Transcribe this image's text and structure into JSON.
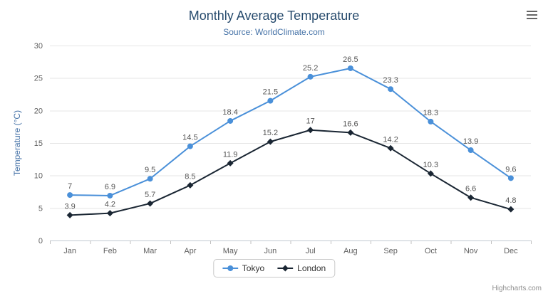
{
  "chart_data": {
    "type": "line",
    "title": "Monthly Average Temperature",
    "subtitle": "Source: WorldClimate.com",
    "xlabel": "",
    "ylabel": "Temperature (°C)",
    "categories": [
      "Jan",
      "Feb",
      "Mar",
      "Apr",
      "May",
      "Jun",
      "Jul",
      "Aug",
      "Sep",
      "Oct",
      "Nov",
      "Dec"
    ],
    "yticks": [
      0,
      5,
      10,
      15,
      20,
      25,
      30
    ],
    "ylim": [
      0,
      30
    ],
    "grid": true,
    "legend_position": "bottom",
    "data_labels": true,
    "series": [
      {
        "name": "Tokyo",
        "marker": "circle",
        "color": "#4a90d9",
        "values": [
          7,
          6.9,
          9.5,
          14.5,
          18.4,
          21.5,
          25.2,
          26.5,
          23.3,
          18.3,
          13.9,
          9.6
        ]
      },
      {
        "name": "London",
        "marker": "diamond",
        "color": "#1a2633",
        "values": [
          3.9,
          4.2,
          5.7,
          8.5,
          11.9,
          15.2,
          17,
          16.6,
          14.2,
          10.3,
          6.6,
          4.8
        ]
      }
    ]
  },
  "credits": "Highcharts.com",
  "icons": {
    "context_menu": "hamburger-menu-icon"
  },
  "colors": {
    "title": "#274b6d",
    "subtitle": "#4572a7",
    "axis_labels": "#606060",
    "gridline": "#e6e6e6",
    "axis_line": "#c0c8d0",
    "data_label": "#555555"
  }
}
